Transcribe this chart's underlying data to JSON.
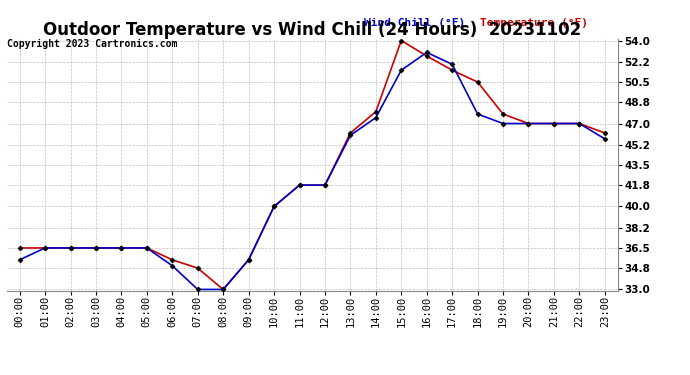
{
  "title": "Outdoor Temperature vs Wind Chill (24 Hours)  20231102",
  "copyright": "Copyright 2023 Cartronics.com",
  "legend_wind_chill": "Wind Chill (°F)",
  "legend_temperature": "Temperature (°F)",
  "x_labels": [
    "00:00",
    "01:00",
    "02:00",
    "03:00",
    "04:00",
    "05:00",
    "06:00",
    "07:00",
    "08:00",
    "09:00",
    "10:00",
    "11:00",
    "12:00",
    "13:00",
    "14:00",
    "15:00",
    "16:00",
    "17:00",
    "18:00",
    "19:00",
    "20:00",
    "21:00",
    "22:00",
    "23:00"
  ],
  "temperature": [
    36.5,
    36.5,
    36.5,
    36.5,
    36.5,
    36.5,
    35.5,
    34.8,
    33.0,
    35.5,
    40.0,
    41.8,
    41.8,
    46.2,
    48.0,
    54.0,
    52.7,
    51.5,
    50.5,
    47.8,
    47.0,
    47.0,
    47.0,
    46.2
  ],
  "wind_chill": [
    35.5,
    36.5,
    36.5,
    36.5,
    36.5,
    36.5,
    35.0,
    33.0,
    33.0,
    35.5,
    40.0,
    41.8,
    41.8,
    46.0,
    47.5,
    51.5,
    53.0,
    52.0,
    47.8,
    47.0,
    47.0,
    47.0,
    47.0,
    45.7
  ],
  "ylim_min": 33.0,
  "ylim_max": 54.0,
  "ytick_labels": [
    "33.0",
    "34.8",
    "36.5",
    "38.2",
    "40.0",
    "41.8",
    "43.5",
    "45.2",
    "47.0",
    "48.8",
    "50.5",
    "52.2",
    "54.0"
  ],
  "ytick_values": [
    33.0,
    34.8,
    36.5,
    38.2,
    40.0,
    41.8,
    43.5,
    45.2,
    47.0,
    48.8,
    50.5,
    52.2,
    54.0
  ],
  "temp_color": "#cc0000",
  "wind_color": "#0000cc",
  "marker_color": "#000000",
  "background_color": "#ffffff",
  "grid_color": "#b0b0b0",
  "title_fontsize": 12,
  "tick_fontsize": 7.5,
  "copyright_fontsize": 7,
  "legend_fontsize": 8
}
